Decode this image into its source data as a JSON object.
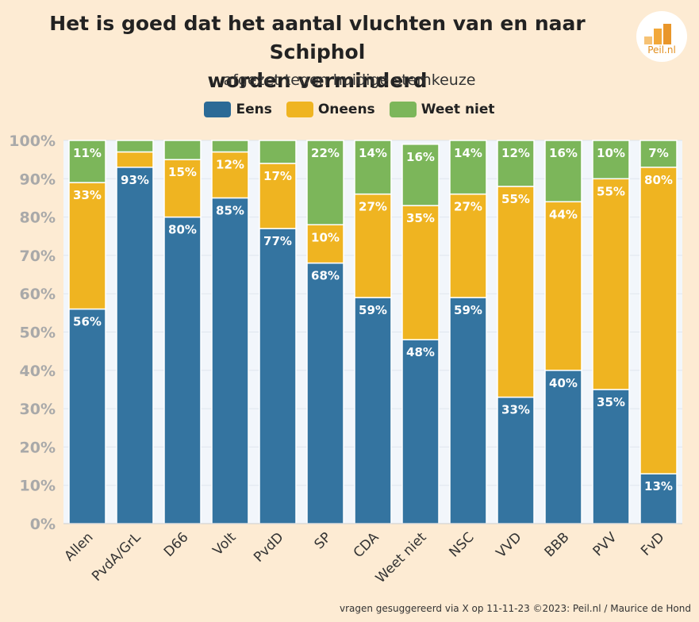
{
  "title_line1": "Het is goed dat het aantal vluchten van en naar Schiphol",
  "title_line2": "worden verminderd",
  "subtitle": "afgezet tegen huidige stemkeuze",
  "logo_text": "Peil.nl",
  "source": "vragen gesuggereerd via X op 11-11-23 ©2023: Peil.nl / Maurice de Hond",
  "colors": {
    "eens": "#3474a0",
    "oneens": "#efb421",
    "weet_niet": "#7cb65a",
    "background": "#fdebd3",
    "plot_bg": "#f2f6fb"
  },
  "chart_data": {
    "type": "bar",
    "stacked": true,
    "title": "Het is goed dat het aantal vluchten van en naar Schiphol worden verminderd",
    "subtitle": "afgezet tegen huidige stemkeuze",
    "categories": [
      "Allen",
      "PvdA/GrL",
      "D66",
      "Volt",
      "PvdD",
      "SP",
      "CDA",
      "Weet niet",
      "NSC",
      "VVD",
      "BBB",
      "PVV",
      "FvD"
    ],
    "series": [
      {
        "name": "Eens",
        "values": [
          56,
          93,
          80,
          85,
          77,
          68,
          59,
          48,
          59,
          33,
          40,
          35,
          13
        ],
        "labels": [
          "56%",
          "93%",
          "80%",
          "85%",
          "77%",
          "68%",
          "59%",
          "48%",
          "59%",
          "33%",
          "40%",
          "35%",
          "13%"
        ]
      },
      {
        "name": "Oneens",
        "values": [
          33,
          4,
          15,
          12,
          17,
          10,
          27,
          35,
          27,
          55,
          44,
          55,
          80
        ],
        "labels": [
          "33%",
          "",
          "15%",
          "12%",
          "17%",
          "10%",
          "27%",
          "35%",
          "27%",
          "55%",
          "44%",
          "55%",
          "80%"
        ]
      },
      {
        "name": "Weet niet",
        "values": [
          11,
          3,
          5,
          3,
          6,
          22,
          14,
          16,
          14,
          12,
          16,
          10,
          7
        ],
        "labels": [
          "11%",
          "",
          "",
          "",
          "",
          "22%",
          "14%",
          "16%",
          "14%",
          "12%",
          "16%",
          "10%",
          "7%"
        ]
      }
    ],
    "ylim": [
      0,
      100
    ],
    "yticks": [
      "0%",
      "10%",
      "20%",
      "30%",
      "40%",
      "50%",
      "60%",
      "70%",
      "80%",
      "90%",
      "100%"
    ],
    "xlabel": "",
    "ylabel": "",
    "legend": "top-center"
  }
}
